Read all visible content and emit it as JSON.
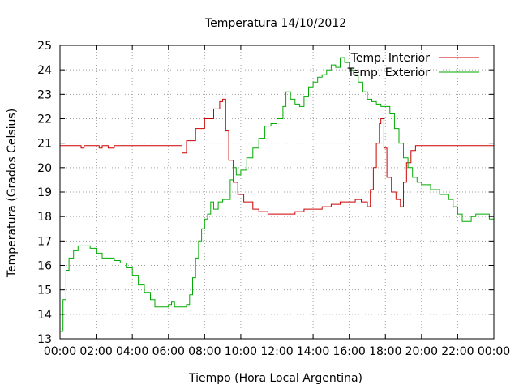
{
  "chart_data": {
    "type": "line",
    "title": "Temperatura 14/10/2012",
    "xlabel": "Tiempo (Hora Local Argentina)",
    "ylabel": "Temperatura (Grados Celsius)",
    "xlim": [
      "00:00",
      "24:00"
    ],
    "ylim": [
      13,
      25
    ],
    "grid": true,
    "legend_position": "top-right",
    "x_tick_labels": [
      "00:00",
      "02:00",
      "04:00",
      "06:00",
      "08:00",
      "10:00",
      "12:00",
      "14:00",
      "16:00",
      "18:00",
      "20:00",
      "22:00",
      "00:00"
    ],
    "y_tick_labels": [
      "13",
      "14",
      "15",
      "16",
      "17",
      "18",
      "19",
      "20",
      "21",
      "22",
      "23",
      "24",
      "25"
    ],
    "series": [
      {
        "name": "Temp. Interior",
        "color": "#cc0000",
        "points": [
          [
            "00:00",
            20.9
          ],
          [
            "01:00",
            20.9
          ],
          [
            "01:10",
            20.8
          ],
          [
            "01:20",
            20.9
          ],
          [
            "02:00",
            20.9
          ],
          [
            "02:10",
            20.8
          ],
          [
            "02:20",
            20.9
          ],
          [
            "02:40",
            20.8
          ],
          [
            "03:00",
            20.9
          ],
          [
            "04:00",
            20.9
          ],
          [
            "05:00",
            20.9
          ],
          [
            "06:00",
            20.9
          ],
          [
            "06:30",
            20.9
          ],
          [
            "06:45",
            20.6
          ],
          [
            "07:00",
            21.1
          ],
          [
            "07:30",
            21.6
          ],
          [
            "08:00",
            22.0
          ],
          [
            "08:30",
            22.4
          ],
          [
            "08:50",
            22.7
          ],
          [
            "09:00",
            22.8
          ],
          [
            "09:10",
            21.5
          ],
          [
            "09:20",
            20.3
          ],
          [
            "09:35",
            19.4
          ],
          [
            "09:50",
            18.9
          ],
          [
            "10:10",
            18.6
          ],
          [
            "10:40",
            18.3
          ],
          [
            "11:00",
            18.2
          ],
          [
            "11:30",
            18.1
          ],
          [
            "12:00",
            18.1
          ],
          [
            "12:30",
            18.1
          ],
          [
            "13:00",
            18.2
          ],
          [
            "13:30",
            18.3
          ],
          [
            "14:00",
            18.3
          ],
          [
            "14:30",
            18.4
          ],
          [
            "15:00",
            18.5
          ],
          [
            "15:30",
            18.6
          ],
          [
            "16:00",
            18.6
          ],
          [
            "16:20",
            18.7
          ],
          [
            "16:40",
            18.6
          ],
          [
            "17:00",
            18.4
          ],
          [
            "17:10",
            19.1
          ],
          [
            "17:20",
            20.0
          ],
          [
            "17:30",
            21.0
          ],
          [
            "17:40",
            21.8
          ],
          [
            "17:45",
            22.0
          ],
          [
            "17:55",
            20.8
          ],
          [
            "18:05",
            19.6
          ],
          [
            "18:20",
            19.0
          ],
          [
            "18:35",
            18.7
          ],
          [
            "18:50",
            18.4
          ],
          [
            "19:00",
            19.4
          ],
          [
            "19:10",
            20.2
          ],
          [
            "19:25",
            20.7
          ],
          [
            "19:40",
            20.9
          ],
          [
            "20:00",
            20.9
          ],
          [
            "21:00",
            20.9
          ],
          [
            "22:00",
            20.9
          ],
          [
            "23:00",
            20.9
          ],
          [
            "24:00",
            20.9
          ]
        ]
      },
      {
        "name": "Temp. Exterior",
        "color": "#00aa00",
        "points": [
          [
            "00:00",
            13.3
          ],
          [
            "00:10",
            14.6
          ],
          [
            "00:20",
            15.8
          ],
          [
            "00:30",
            16.3
          ],
          [
            "00:45",
            16.6
          ],
          [
            "01:00",
            16.8
          ],
          [
            "01:20",
            16.8
          ],
          [
            "01:40",
            16.7
          ],
          [
            "02:00",
            16.5
          ],
          [
            "02:20",
            16.3
          ],
          [
            "02:40",
            16.3
          ],
          [
            "03:00",
            16.2
          ],
          [
            "03:20",
            16.1
          ],
          [
            "03:40",
            15.9
          ],
          [
            "04:00",
            15.6
          ],
          [
            "04:20",
            15.2
          ],
          [
            "04:40",
            14.9
          ],
          [
            "05:00",
            14.6
          ],
          [
            "05:15",
            14.3
          ],
          [
            "05:30",
            14.3
          ],
          [
            "05:45",
            14.3
          ],
          [
            "06:00",
            14.4
          ],
          [
            "06:10",
            14.5
          ],
          [
            "06:20",
            14.3
          ],
          [
            "06:40",
            14.3
          ],
          [
            "07:00",
            14.4
          ],
          [
            "07:10",
            14.8
          ],
          [
            "07:20",
            15.5
          ],
          [
            "07:30",
            16.3
          ],
          [
            "07:40",
            17.0
          ],
          [
            "07:50",
            17.5
          ],
          [
            "08:00",
            17.9
          ],
          [
            "08:10",
            18.1
          ],
          [
            "08:20",
            18.6
          ],
          [
            "08:30",
            18.3
          ],
          [
            "08:45",
            18.6
          ],
          [
            "09:00",
            18.7
          ],
          [
            "09:15",
            18.7
          ],
          [
            "09:25",
            19.5
          ],
          [
            "09:35",
            20.0
          ],
          [
            "09:45",
            19.7
          ],
          [
            "10:00",
            19.9
          ],
          [
            "10:20",
            20.4
          ],
          [
            "10:40",
            20.8
          ],
          [
            "11:00",
            21.2
          ],
          [
            "11:20",
            21.7
          ],
          [
            "11:40",
            21.8
          ],
          [
            "12:00",
            22.0
          ],
          [
            "12:20",
            22.5
          ],
          [
            "12:30",
            23.1
          ],
          [
            "12:45",
            22.8
          ],
          [
            "13:00",
            22.6
          ],
          [
            "13:15",
            22.5
          ],
          [
            "13:30",
            22.9
          ],
          [
            "13:45",
            23.3
          ],
          [
            "14:00",
            23.5
          ],
          [
            "14:15",
            23.7
          ],
          [
            "14:30",
            23.8
          ],
          [
            "14:45",
            24.0
          ],
          [
            "15:00",
            24.2
          ],
          [
            "15:15",
            24.1
          ],
          [
            "15:30",
            24.5
          ],
          [
            "15:45",
            24.3
          ],
          [
            "16:00",
            24.0
          ],
          [
            "16:15",
            23.8
          ],
          [
            "16:30",
            23.5
          ],
          [
            "16:45",
            23.1
          ],
          [
            "17:00",
            22.8
          ],
          [
            "17:15",
            22.7
          ],
          [
            "17:30",
            22.6
          ],
          [
            "17:45",
            22.5
          ],
          [
            "18:00",
            22.5
          ],
          [
            "18:15",
            22.2
          ],
          [
            "18:30",
            21.6
          ],
          [
            "18:45",
            21.0
          ],
          [
            "19:00",
            20.4
          ],
          [
            "19:15",
            20.0
          ],
          [
            "19:30",
            19.6
          ],
          [
            "19:45",
            19.4
          ],
          [
            "20:00",
            19.3
          ],
          [
            "20:30",
            19.1
          ],
          [
            "21:00",
            18.9
          ],
          [
            "21:30",
            18.7
          ],
          [
            "21:45",
            18.4
          ],
          [
            "22:00",
            18.1
          ],
          [
            "22:15",
            17.8
          ],
          [
            "22:30",
            17.8
          ],
          [
            "22:45",
            18.0
          ],
          [
            "23:00",
            18.1
          ],
          [
            "23:30",
            18.1
          ],
          [
            "23:45",
            17.9
          ],
          [
            "24:00",
            18.0
          ]
        ]
      }
    ]
  }
}
